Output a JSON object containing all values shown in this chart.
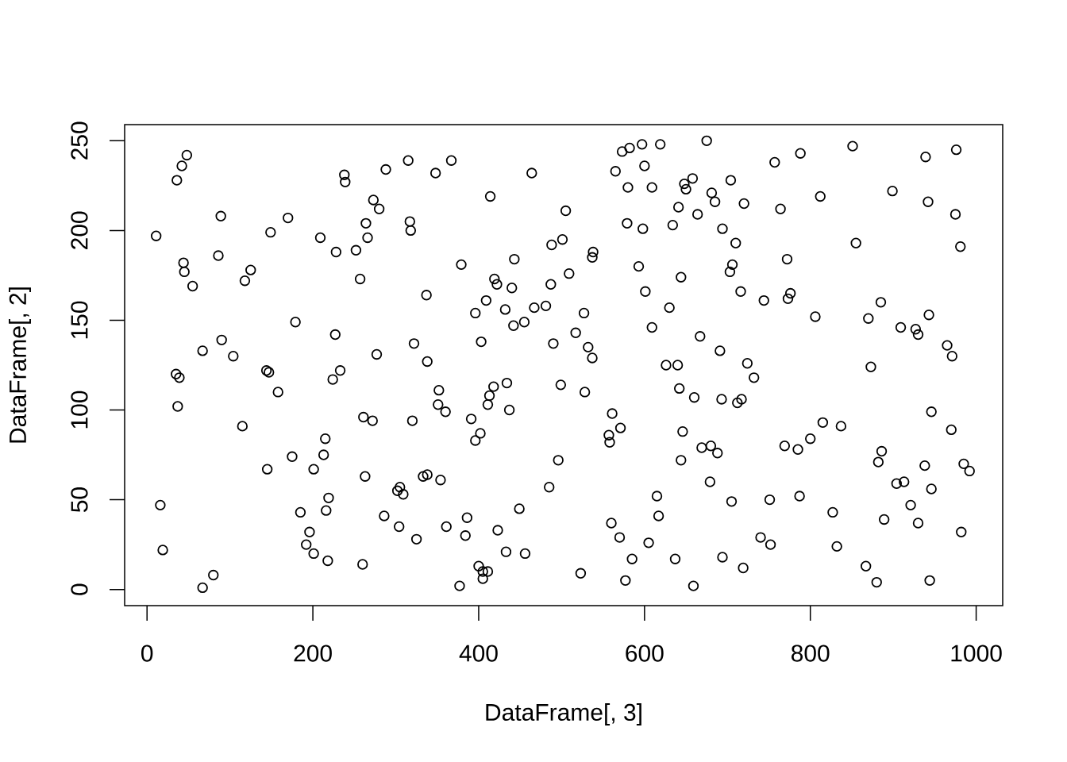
{
  "chart_data": {
    "type": "scatter",
    "xlabel": "DataFrame[, 3]",
    "ylabel": "DataFrame[, 2]",
    "color": "#000000",
    "marker": "circle",
    "xlim": [
      -27,
      1032
    ],
    "ylim": [
      -9,
      259
    ],
    "xticks": [
      0,
      200,
      400,
      600,
      800,
      1000
    ],
    "yticks": [
      0,
      50,
      100,
      150,
      200,
      250
    ],
    "x": [
      11,
      16,
      19,
      35,
      39,
      36,
      37,
      42,
      48,
      44,
      45,
      55,
      67,
      67,
      80,
      86,
      89,
      90,
      104,
      115,
      118,
      125,
      144,
      147,
      145,
      149,
      158,
      170,
      175,
      179,
      185,
      192,
      196,
      201,
      201,
      209,
      213,
      215,
      216,
      219,
      218,
      224,
      227,
      228,
      233,
      238,
      239,
      252,
      257,
      261,
      260,
      263,
      264,
      266,
      272,
      273,
      277,
      280,
      286,
      288,
      302,
      304,
      305,
      309,
      315,
      317,
      318,
      320,
      322,
      325,
      333,
      338,
      337,
      338,
      348,
      351,
      352,
      354,
      360,
      361,
      367,
      377,
      379,
      384,
      386,
      391,
      396,
      396,
      402,
      400,
      403,
      405,
      405,
      411,
      409,
      411,
      413,
      414,
      418,
      419,
      422,
      423,
      432,
      433,
      434,
      437,
      440,
      443,
      442,
      449,
      455,
      456,
      464,
      467,
      481,
      485,
      487,
      490,
      488,
      496,
      499,
      501,
      505,
      509,
      517,
      523,
      527,
      528,
      532,
      537,
      538,
      537,
      557,
      558,
      561,
      560,
      565,
      570,
      571,
      573,
      577,
      579,
      580,
      582,
      585,
      593,
      597,
      598,
      600,
      601,
      605,
      609,
      609,
      615,
      617,
      619,
      626,
      630,
      634,
      637,
      640,
      641,
      642,
      644,
      644,
      648,
      650,
      646,
      658,
      659,
      660,
      664,
      667,
      669,
      675,
      680,
      679,
      681,
      685,
      688,
      691,
      693,
      694,
      694,
      704,
      703,
      706,
      705,
      710,
      712,
      717,
      716,
      719,
      720,
      724,
      732,
      740,
      744,
      751,
      752,
      757,
      764,
      769,
      772,
      773,
      776,
      785,
      787,
      788,
      800,
      806,
      812,
      815,
      827,
      832,
      837,
      851,
      855,
      867,
      870,
      873,
      880,
      882,
      886,
      885,
      889,
      899,
      904,
      909,
      913,
      921,
      927,
      930,
      930,
      938,
      939,
      942,
      943,
      944,
      946,
      946,
      965,
      970,
      971,
      975,
      976,
      981,
      982,
      985,
      992
    ],
    "values": [
      197,
      47,
      22,
      120,
      118,
      228,
      102,
      236,
      242,
      182,
      177,
      169,
      1,
      133,
      8,
      186,
      208,
      139,
      130,
      91,
      172,
      178,
      122,
      121,
      67,
      199,
      110,
      207,
      74,
      149,
      43,
      25,
      32,
      67,
      20,
      196,
      75,
      84,
      44,
      51,
      16,
      117,
      142,
      188,
      122,
      231,
      227,
      189,
      173,
      96,
      14,
      63,
      204,
      196,
      94,
      217,
      131,
      212,
      41,
      234,
      55,
      35,
      57,
      53,
      239,
      205,
      200,
      94,
      137,
      28,
      63,
      64,
      164,
      127,
      232,
      103,
      111,
      61,
      99,
      35,
      239,
      2,
      181,
      30,
      40,
      95,
      154,
      83,
      87,
      13,
      138,
      10,
      6,
      10,
      161,
      103,
      108,
      219,
      113,
      173,
      170,
      33,
      156,
      21,
      115,
      100,
      168,
      184,
      147,
      45,
      149,
      20,
      232,
      157,
      158,
      57,
      170,
      137,
      192,
      72,
      114,
      195,
      211,
      176,
      143,
      9,
      154,
      110,
      135,
      129,
      188,
      185,
      86,
      82,
      98,
      37,
      233,
      29,
      90,
      244,
      5,
      204,
      224,
      246,
      17,
      180,
      248,
      201,
      236,
      166,
      26,
      146,
      224,
      52,
      41,
      248,
      125,
      157,
      203,
      17,
      125,
      213,
      112,
      72,
      174,
      226,
      223,
      88,
      229,
      2,
      107,
      209,
      141,
      79,
      250,
      80,
      60,
      221,
      216,
      76,
      133,
      106,
      18,
      201,
      228,
      177,
      181,
      49,
      193,
      104,
      106,
      166,
      12,
      215,
      126,
      118,
      29,
      161,
      50,
      25,
      238,
      212,
      80,
      184,
      162,
      165,
      78,
      52,
      243,
      84,
      152,
      219,
      93,
      43,
      24,
      91,
      247,
      193,
      13,
      151,
      124,
      4,
      71,
      77,
      160,
      39,
      222,
      59,
      146,
      60,
      47,
      145,
      37,
      142,
      69,
      241,
      216,
      153,
      5,
      99,
      56,
      136,
      89,
      130,
      209,
      245,
      191,
      32,
      70,
      66
    ]
  }
}
